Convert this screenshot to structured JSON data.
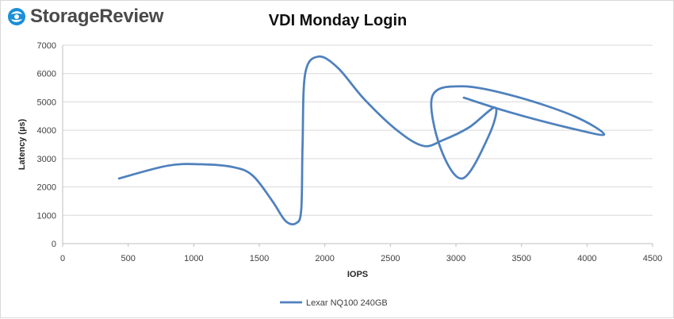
{
  "brand": {
    "name": "StorageReview",
    "logo_icon": "storage-review-swirl-icon",
    "colors": {
      "dark": "#4a4a4a",
      "accent": "#1b8fd8"
    }
  },
  "chart_data": {
    "type": "line",
    "title": "VDI Monday Login",
    "xlabel": "IOPS",
    "ylabel": "Latency (µs)",
    "xlim": [
      0,
      4500
    ],
    "ylim": [
      0,
      7000
    ],
    "xticks": [
      0,
      500,
      1000,
      1500,
      2000,
      2500,
      3000,
      3500,
      4000,
      4500
    ],
    "yticks": [
      0,
      1000,
      2000,
      3000,
      4000,
      5000,
      6000,
      7000
    ],
    "grid": "horizontal",
    "legend": "bottom",
    "series": [
      {
        "name": "Lexar NQ100 240GB",
        "color": "#4f81bd",
        "points": [
          [
            430,
            2300
          ],
          [
            800,
            2750
          ],
          [
            1050,
            2800
          ],
          [
            1300,
            2700
          ],
          [
            1450,
            2400
          ],
          [
            1600,
            1500
          ],
          [
            1700,
            800
          ],
          [
            1780,
            720
          ],
          [
            1820,
            1200
          ],
          [
            1830,
            3500
          ],
          [
            1850,
            6000
          ],
          [
            1950,
            6600
          ],
          [
            2100,
            6200
          ],
          [
            2300,
            5100
          ],
          [
            2550,
            4000
          ],
          [
            2750,
            3450
          ],
          [
            2900,
            3650
          ],
          [
            3100,
            4100
          ],
          [
            3300,
            4800
          ],
          [
            3250,
            3800
          ],
          [
            3050,
            2300
          ],
          [
            2880,
            3400
          ],
          [
            2820,
            5200
          ],
          [
            3050,
            5550
          ],
          [
            3450,
            5200
          ],
          [
            3900,
            4500
          ],
          [
            4130,
            3850
          ],
          [
            3850,
            4100
          ],
          [
            3400,
            4650
          ],
          [
            3060,
            5150
          ]
        ]
      }
    ]
  }
}
